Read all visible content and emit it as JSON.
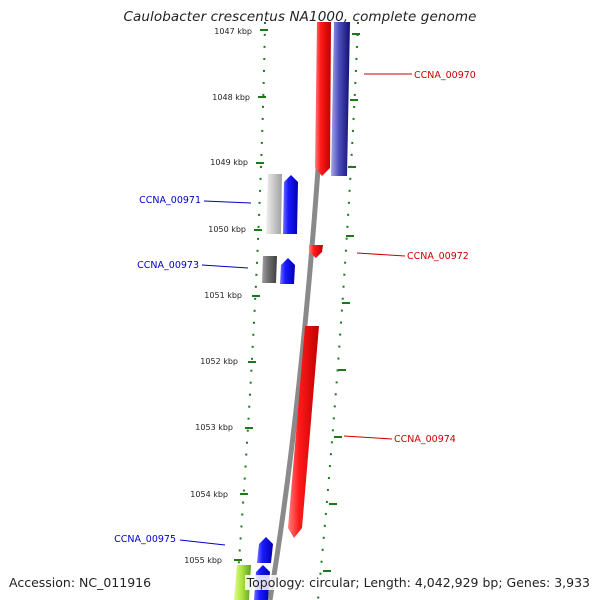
{
  "title": "Caulobacter crescentus NA1000, complete genome",
  "footer": {
    "accession": "Accession: NC_011916",
    "summary": "Topology: circular; Length: 4,042,929 bp; Genes: 3,933"
  },
  "ticks": [
    {
      "kbp": 1047,
      "label": "1047 kbp"
    },
    {
      "kbp": 1048,
      "label": "1048 kbp"
    },
    {
      "kbp": 1049,
      "label": "1049 kbp"
    },
    {
      "kbp": 1050,
      "label": "1050 kbp"
    },
    {
      "kbp": 1051,
      "label": "1051 kbp"
    },
    {
      "kbp": 1052,
      "label": "1052 kbp"
    },
    {
      "kbp": 1053,
      "label": "1053 kbp"
    },
    {
      "kbp": 1054,
      "label": "1054 kbp"
    },
    {
      "kbp": 1055,
      "label": "1055 kbp"
    }
  ],
  "genes": [
    {
      "id": "CCNA_00970",
      "strand": "+",
      "color": "#cc0000"
    },
    {
      "id": "CCNA_00971",
      "strand": "-",
      "color": "#0000cc"
    },
    {
      "id": "CCNA_00972",
      "strand": "+",
      "color": "#cc0000"
    },
    {
      "id": "CCNA_00973",
      "strand": "-",
      "color": "#0000cc"
    },
    {
      "id": "CCNA_00974",
      "strand": "+",
      "color": "#cc0000"
    },
    {
      "id": "CCNA_00975",
      "strand": "-",
      "color": "#0000cc"
    }
  ],
  "colors": {
    "backbone": "#8a8a8a",
    "tick_marks": "#1a7a1a",
    "plus_strand": "#ff0000",
    "minus_strand": "#0000ff",
    "label_plus": "#cc0000",
    "label_minus": "#0000cc"
  }
}
